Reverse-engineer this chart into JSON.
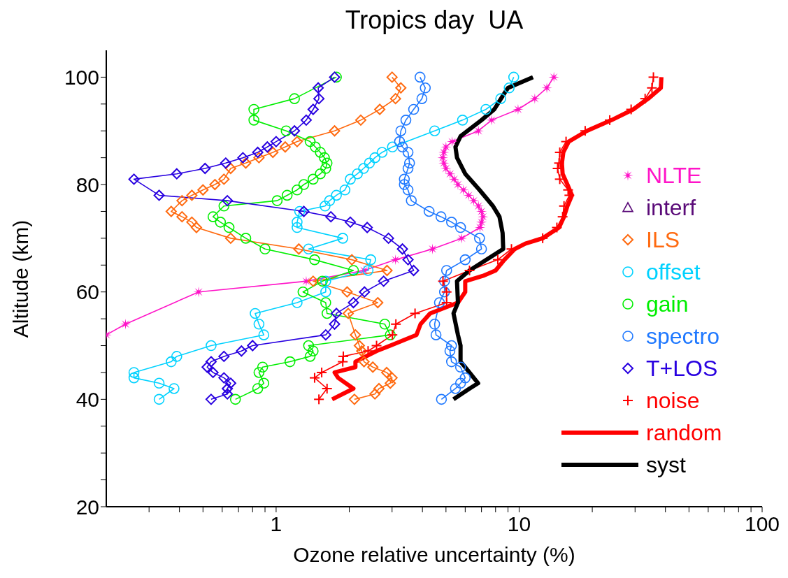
{
  "chart_data": {
    "type": "line",
    "title": "Tropics day  UA",
    "xlabel": "Ozone relative uncertainty (%)",
    "ylabel": "Altitude (km)",
    "log": "x",
    "legend": "right",
    "xlim": [
      0.2,
      100
    ],
    "ylim": [
      20,
      105
    ],
    "xticks": [
      {
        "value": 0.3,
        "label": null
      },
      {
        "value": 0.4,
        "label": null
      },
      {
        "value": 0.5,
        "label": null
      },
      {
        "value": 0.6,
        "label": null
      },
      {
        "value": 0.7,
        "label": null
      },
      {
        "value": 0.8,
        "label": null
      },
      {
        "value": 0.9,
        "label": null
      },
      1,
      {
        "value": 2,
        "label": null
      },
      {
        "value": 3,
        "label": null
      },
      {
        "value": 4,
        "label": null
      },
      {
        "value": 5,
        "label": null
      },
      {
        "value": 6,
        "label": null
      },
      {
        "value": 7,
        "label": null
      },
      {
        "value": 8,
        "label": null
      },
      {
        "value": 9,
        "label": null
      },
      10,
      {
        "value": 20,
        "label": null
      },
      {
        "value": 30,
        "label": null
      },
      {
        "value": 40,
        "label": null
      },
      {
        "value": 50,
        "label": null
      },
      {
        "value": 60,
        "label": null
      },
      {
        "value": 70,
        "label": null
      },
      {
        "value": 80,
        "label": null
      },
      {
        "value": 90,
        "label": null
      },
      100
    ],
    "yticks": [
      20,
      {
        "value": 25,
        "label": null
      },
      {
        "value": 30,
        "label": null
      },
      {
        "value": 35,
        "label": null
      },
      40,
      {
        "value": 45,
        "label": null
      },
      {
        "value": 50,
        "label": null
      },
      {
        "value": 55,
        "label": null
      },
      60,
      {
        "value": 65,
        "label": null
      },
      {
        "value": 70,
        "label": null
      },
      {
        "value": 75,
        "label": null
      },
      80,
      {
        "value": 85,
        "label": null
      },
      {
        "value": 90,
        "label": null
      },
      {
        "value": 95,
        "label": null
      },
      100
    ],
    "series": [
      {
        "name": "NLTE",
        "color": "#ff14c8",
        "marker": "star",
        "x": [
          13.9,
          13.0,
          11.6,
          9.9,
          7.7,
          6.8,
          5.3,
          5.0,
          4.9,
          4.85,
          4.9,
          5.0,
          5.2,
          5.4,
          5.6,
          5.9,
          6.2,
          6.5,
          6.8,
          7.0,
          7.1,
          7.0,
          6.9,
          5.8,
          4.4,
          3.1,
          2.3,
          1.33,
          0.48,
          null,
          null,
          0.24,
          0.2
        ],
        "values": [
          100,
          98,
          96,
          94,
          92,
          90,
          88,
          87,
          86,
          85,
          84,
          83,
          82,
          81,
          80,
          79,
          78,
          77,
          76,
          75,
          74,
          73,
          72,
          70,
          68,
          66,
          64,
          62,
          60,
          null,
          null,
          54,
          52
        ]
      },
      {
        "name": "interf",
        "color": "#5a0a78",
        "marker": "triangle"
      },
      {
        "name": "ILS",
        "color": "#ff6a10",
        "marker": "diamond",
        "x": [
          3.0,
          3.26,
          3.1,
          2.67,
          2.23,
          1.74,
          1.22,
          1.09,
          0.97,
          0.85,
          0.75,
          0.65,
          0.61,
          0.56,
          0.5,
          0.45,
          0.41,
          0.37,
          0.41,
          0.45,
          0.47,
          0.65,
          1.24,
          2.05,
          2.86,
          1.42,
          1.96,
          2.62,
          1.98,
          2.12,
          2.2,
          2.25,
          2.3,
          2.5,
          2.85,
          3.0,
          2.95,
          2.65,
          2.55,
          2.1
        ],
        "values": [
          100,
          98,
          96,
          94,
          92,
          90,
          88,
          87,
          86,
          85,
          84,
          83,
          81,
          80,
          79,
          78,
          77,
          75,
          74,
          73,
          72,
          70,
          68,
          66,
          64,
          62,
          60,
          58,
          56,
          52,
          50,
          49,
          47,
          46,
          45,
          44,
          43,
          42,
          41,
          40
        ]
      },
      {
        "name": "offset",
        "color": "#00d2ff",
        "marker": "circle",
        "x": [
          9.5,
          9.1,
          8.4,
          7.3,
          5.85,
          4.49,
          3.01,
          2.73,
          2.55,
          2.42,
          2.29,
          2.16,
          2.02,
          1.92,
          1.77,
          1.66,
          1.59,
          1.25,
          1.22,
          1.22,
          1.88,
          1.36,
          2.45,
          2.39,
          1.6,
          1.6,
          1.22,
          0.82,
          0.85,
          0.89,
          0.54,
          0.39,
          0.37,
          0.26,
          0.26,
          0.33,
          0.38,
          0.33
        ],
        "values": [
          100,
          98,
          96,
          94,
          92,
          90,
          87,
          86,
          85,
          84,
          83,
          82,
          81,
          79,
          78,
          77,
          76,
          75,
          73,
          72,
          70,
          68,
          66,
          64,
          62,
          60,
          58,
          56,
          54,
          52,
          50,
          48,
          47,
          45,
          44,
          43,
          42,
          40
        ]
      },
      {
        "name": "gain",
        "color": "#00ee00",
        "marker": "circle",
        "x": [
          1.77,
          1.19,
          0.81,
          0.81,
          1.1,
          1.38,
          1.45,
          1.52,
          1.58,
          1.62,
          1.6,
          1.52,
          1.42,
          1.3,
          1.22,
          1.11,
          1.01,
          0.61,
          0.55,
          0.59,
          0.64,
          0.75,
          0.9,
          1.44,
          2.08,
          1.55,
          1.29,
          1.6,
          1.62,
          2.8,
          2.95,
          1.36,
          1.42,
          1.38,
          1.14,
          0.88,
          0.85,
          0.89,
          0.84,
          0.68
        ],
        "values": [
          100,
          96,
          94,
          92,
          90,
          88,
          87,
          86,
          85,
          84,
          83,
          82,
          81,
          80,
          79,
          78,
          77,
          76,
          74,
          73,
          72,
          70,
          68,
          66,
          64,
          62,
          60,
          58,
          56,
          54,
          52,
          50,
          49,
          48,
          47,
          46,
          45,
          43,
          42,
          40
        ]
      },
      {
        "name": "spectro",
        "color": "#1e78ff",
        "marker": "circle",
        "x": [
          3.91,
          4.11,
          3.98,
          3.68,
          3.42,
          3.26,
          3.22,
          3.31,
          3.49,
          3.54,
          3.49,
          3.37,
          3.37,
          3.49,
          3.6,
          4.26,
          4.77,
          5.27,
          5.74,
          6.87,
          7.0,
          6.0,
          5.03,
          4.93,
          4.93,
          4.7,
          4.49,
          4.55,
          5.27,
          5.19,
          5.27,
          5.74,
          6.0,
          5.74,
          5.47,
          4.79
        ],
        "values": [
          100,
          98,
          96,
          94,
          92,
          90,
          88,
          87,
          86,
          84,
          83,
          81,
          80,
          79,
          77,
          75,
          74,
          73,
          72,
          70,
          68,
          66,
          64,
          62,
          60,
          58,
          54,
          52,
          50,
          49,
          47,
          46,
          44,
          43,
          42,
          40
        ]
      },
      {
        "name": "T+LOS",
        "color": "#2800e0",
        "marker": "diamond",
        "x": [
          1.74,
          1.49,
          1.5,
          1.42,
          1.33,
          1.19,
          1.0,
          0.92,
          0.84,
          0.73,
          0.62,
          0.51,
          0.39,
          0.26,
          null,
          null,
          0.33,
          0.63,
          1.3,
          1.68,
          2.02,
          2.37,
          2.9,
          3.31,
          3.49,
          3.68,
          2.77,
          2.31,
          2.08,
          1.77,
          1.74,
          1.6,
          0.8,
          0.72,
          0.61,
          0.54,
          0.52,
          0.55,
          0.61,
          0.65,
          0.63,
          0.63,
          0.54
        ],
        "values": [
          100,
          98,
          96,
          94,
          92,
          90,
          88,
          87,
          86,
          85,
          84,
          83,
          82,
          81,
          null,
          null,
          78,
          77,
          75,
          74,
          73,
          72,
          70,
          68,
          66,
          64,
          62,
          60,
          58,
          56,
          54,
          52,
          50,
          49,
          48,
          47,
          46,
          45,
          44,
          43,
          42,
          41,
          40
        ]
      },
      {
        "name": "noise",
        "color": "#ff0000",
        "marker": "cross",
        "x": [
          35.7,
          35.2,
          33.0,
          28.9,
          23.6,
          18.7,
          15.6,
          14.7,
          14.6,
          14.4,
          14.7,
          15.9,
          16.1,
          15.3,
          15.1,
          14.3,
          12.5,
          9.3,
          8.17,
          6.25,
          4.86,
          5.03,
          5.03,
          3.73,
          3.11,
          3.01,
          2.59,
          2.39,
          1.89,
          1.88,
          1.54,
          1.44,
          1.62,
          1.5
        ],
        "values": [
          100,
          98,
          96,
          94,
          92,
          90,
          88,
          86,
          84,
          83,
          81,
          79,
          78,
          76,
          74,
          72,
          70,
          68,
          66,
          64,
          62,
          60,
          58,
          56,
          54,
          52,
          50,
          49,
          48,
          47,
          45,
          44,
          42,
          40
        ]
      },
      {
        "name": "random",
        "color": "#ff0000",
        "marker": "none",
        "x": [
          38.5,
          38.3,
          34,
          29.5,
          24,
          19,
          16,
          15.2,
          15.0,
          15.1,
          15.8,
          16.5,
          15.8,
          15.3,
          14.6,
          12.5,
          10.6,
          9.6,
          8.7,
          8.0,
          7.1,
          6.0,
          6.0,
          5.6,
          4.3,
          3.93,
          3.78,
          2.95,
          2.59,
          2.12,
          2.12,
          1.74,
          1.8,
          2.08,
          1.7
        ],
        "values": [
          100,
          98,
          96,
          94,
          92,
          90,
          88,
          86,
          84,
          82,
          80,
          78,
          76,
          74,
          72,
          70,
          69,
          68,
          66,
          64,
          63,
          62,
          60,
          58,
          56,
          54,
          52,
          50,
          49,
          47,
          46,
          45,
          44,
          42,
          40
        ]
      },
      {
        "name": "syst",
        "color": "#000000",
        "marker": "none",
        "x": [
          11.4,
          9.0,
          8.7,
          7.9,
          7.0,
          5.74,
          5.47,
          5.55,
          6.0,
          6.87,
          7.8,
          8.3,
          8.55,
          8.6,
          6.25,
          5.55,
          5.6,
          5.37,
          5.6,
          5.74,
          5.74,
          6.0,
          6.78,
          6.25,
          5.37
        ],
        "values": [
          100,
          98,
          97,
          94,
          92,
          89,
          87,
          85,
          82,
          79,
          76,
          74,
          71,
          68,
          64,
          62,
          58,
          56,
          52,
          50,
          47,
          46,
          43,
          42,
          40
        ]
      }
    ]
  }
}
